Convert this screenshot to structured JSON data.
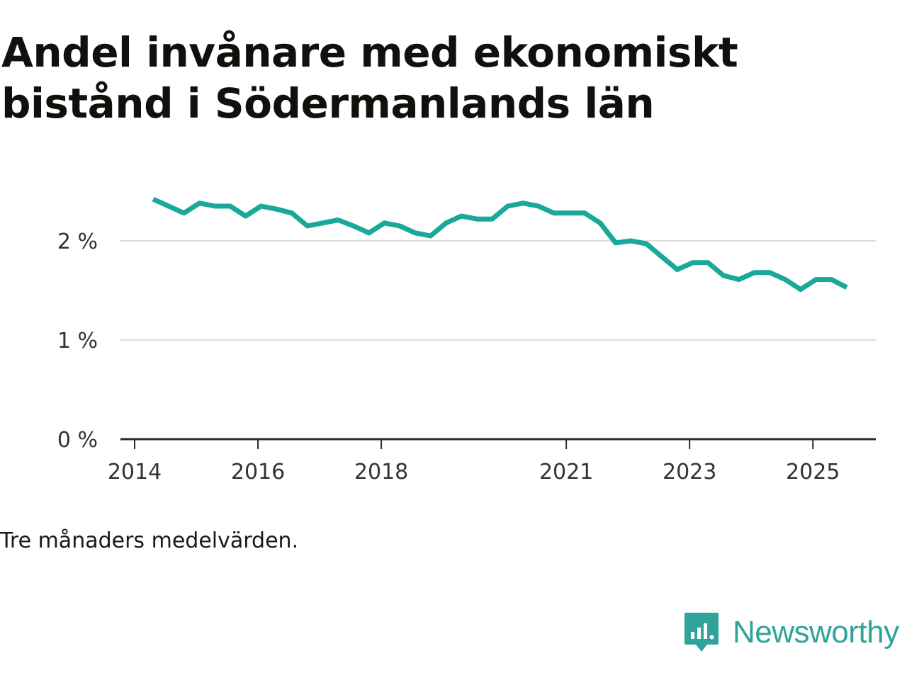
{
  "title": "Andel invånare med ekonomiskt bistånd i Södermanlands län",
  "note": "Tre månaders medelvärden.",
  "brand": {
    "name": "Newsworthy",
    "icon": "newsworthy-logo-icon",
    "color": "#30a39a"
  },
  "chart_data": {
    "type": "line",
    "title": "Andel invånare med ekonomiskt bistånd i Södermanlands län",
    "xlabel": "",
    "ylabel": "",
    "x_range": [
      2014,
      2026.25
    ],
    "ylim": [
      0,
      2.5
    ],
    "y_ticks": [
      0,
      1,
      2
    ],
    "y_tick_labels": [
      "0 %",
      "1 %",
      "2 %"
    ],
    "x_ticks": [
      2014,
      2016,
      2018,
      2021,
      2023,
      2025
    ],
    "x_tick_labels": [
      "2014",
      "2016",
      "2018",
      "2021",
      "2023",
      "2025"
    ],
    "grid": true,
    "series": [
      {
        "name": "Andel invånare med ekonomiskt bistånd",
        "color": "#1aa898",
        "x": [
          2014.3,
          2014.55,
          2014.8,
          2015.05,
          2015.3,
          2015.55,
          2015.8,
          2016.05,
          2016.3,
          2016.55,
          2016.8,
          2017.05,
          2017.3,
          2017.55,
          2017.8,
          2018.05,
          2018.3,
          2018.55,
          2018.8,
          2019.05,
          2019.3,
          2019.55,
          2019.8,
          2020.05,
          2020.3,
          2020.55,
          2020.8,
          2021.05,
          2021.3,
          2021.55,
          2021.8,
          2022.05,
          2022.3,
          2022.55,
          2022.8,
          2023.05,
          2023.3,
          2023.55,
          2023.8,
          2024.05,
          2024.3,
          2024.55,
          2024.8,
          2025.05,
          2025.3,
          2025.55
        ],
        "values": [
          2.42,
          2.35,
          2.28,
          2.38,
          2.35,
          2.35,
          2.25,
          2.35,
          2.32,
          2.28,
          2.15,
          2.18,
          2.21,
          2.15,
          2.08,
          2.18,
          2.15,
          2.08,
          2.05,
          2.18,
          2.25,
          2.22,
          2.22,
          2.35,
          2.38,
          2.35,
          2.28,
          2.28,
          2.28,
          2.18,
          1.98,
          2.0,
          1.97,
          1.84,
          1.71,
          1.78,
          1.78,
          1.65,
          1.61,
          1.68,
          1.68,
          1.61,
          1.51,
          1.61,
          1.61,
          1.53
        ]
      }
    ]
  }
}
